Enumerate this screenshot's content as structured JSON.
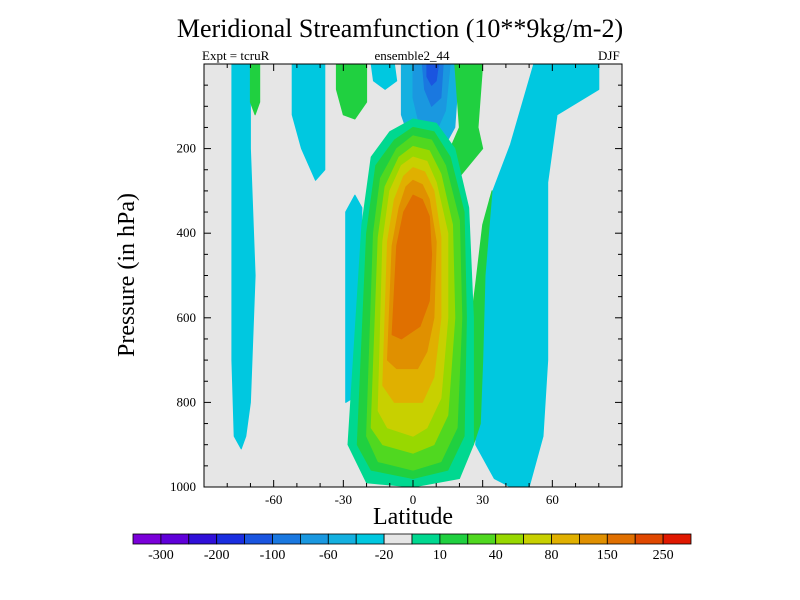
{
  "chart_data": {
    "type": "heatmap",
    "title": "Meridional Streamfunction (10**9kg/m-2)",
    "subtitle_left": "Expt = tcruR",
    "subtitle_center": "ensemble2_44",
    "subtitle_right": "DJF",
    "xlabel": "Latitude",
    "ylabel": "Pressure (in hPa)",
    "xlim": [
      -90,
      90
    ],
    "ylim": [
      1000,
      0
    ],
    "x_ticks": [
      -60,
      -30,
      0,
      30,
      60
    ],
    "y_ticks": [
      200,
      400,
      600,
      800,
      1000
    ],
    "colorbar": {
      "labels": [
        "-300",
        "-200",
        "-100",
        "-60",
        "-20",
        "10",
        "40",
        "80",
        "150",
        "250"
      ],
      "colors": [
        "#7a00d9",
        "#5f00d9",
        "#3010d9",
        "#1a2ee0",
        "#1a55e0",
        "#1a78e0",
        "#1a98e0",
        "#14b0e0",
        "#00c8e0",
        "#e6e6e6",
        "#00d890",
        "#20d040",
        "#50d820",
        "#98d800",
        "#c8d000",
        "#e0b000",
        "#e09000",
        "#e07000",
        "#e04800",
        "#e01800"
      ]
    },
    "cells_note": "",
    "regions": [
      {
        "level": 8,
        "points": [
          [
            -78,
            0
          ],
          [
            -70,
            0
          ],
          [
            -70,
            200
          ],
          [
            -68,
            500
          ],
          [
            -70,
            800
          ],
          [
            -72,
            880
          ],
          [
            -74,
            910
          ],
          [
            -77,
            880
          ],
          [
            -78,
            700
          ]
        ]
      },
      {
        "level": 8,
        "points": [
          [
            -52,
            0
          ],
          [
            -38,
            0
          ],
          [
            -38,
            250
          ],
          [
            -42,
            275
          ],
          [
            -48,
            200
          ],
          [
            -52,
            120
          ]
        ]
      },
      {
        "level": 8,
        "points": [
          [
            -29,
            350
          ],
          [
            -25,
            310
          ],
          [
            -22,
            340
          ],
          [
            -23,
            700
          ],
          [
            -26,
            790
          ],
          [
            -29,
            800
          ],
          [
            -29,
            600
          ]
        ]
      },
      {
        "level": 8,
        "points": [
          [
            -18,
            0
          ],
          [
            -8,
            0
          ],
          [
            -7,
            40
          ],
          [
            -12,
            60
          ],
          [
            -17,
            40
          ]
        ]
      },
      {
        "level": 8,
        "points": [
          [
            27,
            900
          ],
          [
            33,
            320
          ],
          [
            42,
            190
          ],
          [
            52,
            0
          ],
          [
            80,
            0
          ],
          [
            80,
            60
          ],
          [
            62,
            120
          ],
          [
            58,
            280
          ],
          [
            58,
            700
          ],
          [
            56,
            880
          ],
          [
            50,
            1000
          ],
          [
            42,
            1000
          ],
          [
            35,
            980
          ]
        ]
      },
      {
        "level": 7,
        "points": [
          [
            -5,
            0
          ],
          [
            20,
            0
          ],
          [
            18,
            150
          ],
          [
            10,
            230
          ],
          [
            0,
            200
          ],
          [
            -5,
            120
          ]
        ]
      },
      {
        "level": 6,
        "points": [
          [
            0,
            0
          ],
          [
            16,
            0
          ],
          [
            14,
            110
          ],
          [
            10,
            160
          ],
          [
            3,
            150
          ],
          [
            0,
            80
          ]
        ]
      },
      {
        "level": 5,
        "points": [
          [
            4,
            0
          ],
          [
            13,
            0
          ],
          [
            12,
            80
          ],
          [
            8,
            100
          ],
          [
            5,
            60
          ]
        ]
      },
      {
        "level": 4,
        "points": [
          [
            6,
            0
          ],
          [
            11,
            0
          ],
          [
            10,
            40
          ],
          [
            8,
            50
          ],
          [
            6,
            30
          ]
        ]
      },
      {
        "level": 11,
        "points": [
          [
            -70,
            0
          ],
          [
            -66,
            0
          ],
          [
            -66,
            90
          ],
          [
            -68,
            120
          ],
          [
            -70,
            90
          ]
        ]
      },
      {
        "level": 11,
        "points": [
          [
            -33,
            0
          ],
          [
            -20,
            0
          ],
          [
            -20,
            90
          ],
          [
            -25,
            130
          ],
          [
            -30,
            120
          ],
          [
            -33,
            60
          ]
        ]
      },
      {
        "level": 11,
        "points": [
          [
            18,
            0
          ],
          [
            30,
            0
          ],
          [
            28,
            150
          ],
          [
            30,
            200
          ],
          [
            18,
            280
          ],
          [
            14,
            330
          ],
          [
            14,
            260
          ],
          [
            16,
            200
          ],
          [
            20,
            150
          ]
        ]
      },
      {
        "level": 11,
        "points": [
          [
            24,
            650
          ],
          [
            27,
            520
          ],
          [
            30,
            380
          ],
          [
            34,
            300
          ],
          [
            31,
            500
          ],
          [
            30,
            700
          ],
          [
            29,
            850
          ],
          [
            26,
            900
          ]
        ]
      },
      {
        "level": 10,
        "points": [
          [
            -28,
            900
          ],
          [
            -22,
            380
          ],
          [
            -18,
            220
          ],
          [
            -10,
            160
          ],
          [
            0,
            130
          ],
          [
            10,
            140
          ],
          [
            18,
            200
          ],
          [
            24,
            340
          ],
          [
            26,
            600
          ],
          [
            26,
            900
          ],
          [
            20,
            980
          ],
          [
            0,
            1000
          ],
          [
            -20,
            990
          ]
        ]
      },
      {
        "level": 11,
        "points": [
          [
            -24,
            900
          ],
          [
            -20,
            400
          ],
          [
            -16,
            240
          ],
          [
            -8,
            180
          ],
          [
            0,
            150
          ],
          [
            9,
            160
          ],
          [
            16,
            220
          ],
          [
            22,
            350
          ],
          [
            23,
            600
          ],
          [
            22,
            880
          ],
          [
            15,
            960
          ],
          [
            0,
            980
          ],
          [
            -18,
            960
          ]
        ]
      },
      {
        "level": 12,
        "points": [
          [
            -20,
            880
          ],
          [
            -17,
            400
          ],
          [
            -14,
            270
          ],
          [
            -7,
            200
          ],
          [
            0,
            170
          ],
          [
            8,
            180
          ],
          [
            14,
            240
          ],
          [
            20,
            370
          ],
          [
            21,
            600
          ],
          [
            19,
            860
          ],
          [
            12,
            940
          ],
          [
            0,
            960
          ],
          [
            -15,
            940
          ]
        ]
      },
      {
        "level": 13,
        "points": [
          [
            -18,
            860
          ],
          [
            -15,
            410
          ],
          [
            -12,
            290
          ],
          [
            -6,
            220
          ],
          [
            0,
            195
          ],
          [
            7,
            205
          ],
          [
            12,
            260
          ],
          [
            17,
            380
          ],
          [
            18,
            600
          ],
          [
            15,
            830
          ],
          [
            9,
            900
          ],
          [
            0,
            920
          ],
          [
            -13,
            900
          ]
        ]
      },
      {
        "level": 14,
        "points": [
          [
            -15,
            820
          ],
          [
            -13,
            420
          ],
          [
            -10,
            300
          ],
          [
            -5,
            240
          ],
          [
            0,
            220
          ],
          [
            6,
            230
          ],
          [
            10,
            280
          ],
          [
            15,
            400
          ],
          [
            15,
            600
          ],
          [
            12,
            790
          ],
          [
            6,
            860
          ],
          [
            0,
            880
          ],
          [
            -11,
            860
          ]
        ]
      },
      {
        "level": 15,
        "points": [
          [
            -13,
            760
          ],
          [
            -11,
            420
          ],
          [
            -8,
            320
          ],
          [
            -4,
            265
          ],
          [
            0,
            245
          ],
          [
            5,
            255
          ],
          [
            9,
            300
          ],
          [
            12,
            410
          ],
          [
            12,
            600
          ],
          [
            9,
            740
          ],
          [
            4,
            800
          ],
          [
            -8,
            800
          ]
        ]
      },
      {
        "level": 16,
        "points": [
          [
            -11,
            700
          ],
          [
            -9,
            430
          ],
          [
            -6,
            340
          ],
          [
            -3,
            290
          ],
          [
            0,
            275
          ],
          [
            4,
            285
          ],
          [
            7,
            320
          ],
          [
            10,
            420
          ],
          [
            9,
            600
          ],
          [
            6,
            680
          ],
          [
            2,
            720
          ],
          [
            -7,
            720
          ]
        ]
      },
      {
        "level": 17,
        "points": [
          [
            -9,
            640
          ],
          [
            -7,
            430
          ],
          [
            -4,
            350
          ],
          [
            0,
            310
          ],
          [
            4,
            320
          ],
          [
            7,
            360
          ],
          [
            8,
            450
          ],
          [
            7,
            560
          ],
          [
            3,
            620
          ],
          [
            -5,
            650
          ]
        ]
      }
    ]
  }
}
